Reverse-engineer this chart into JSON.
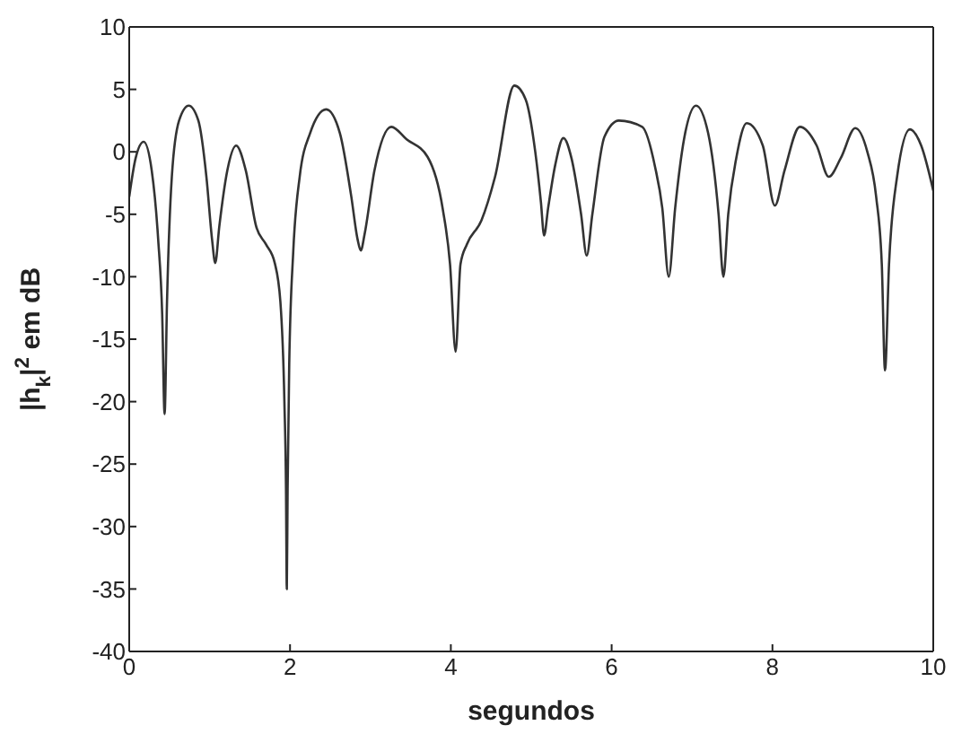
{
  "chart_data": {
    "type": "line",
    "xlabel": "segundos",
    "ylabel": "|h$_{k}$|$^{2}$ em dB",
    "xlim": [
      0,
      10
    ],
    "ylim": [
      -40,
      10
    ],
    "xticks": [
      0,
      2,
      4,
      6,
      8,
      10
    ],
    "yticks": [
      10,
      5,
      0,
      -5,
      -10,
      -15,
      -20,
      -25,
      -30,
      -35,
      -40
    ],
    "marker": "none",
    "line_style": "solid",
    "series": [
      {
        "color": "#333333",
        "x": [
          0,
          0.08,
          0.18,
          0.28,
          0.36,
          0.41,
          0.44,
          0.47,
          0.53,
          0.62,
          0.74,
          0.86,
          0.96,
          1.03,
          1.07,
          1.12,
          1.22,
          1.33,
          1.45,
          1.58,
          1.7,
          1.81,
          1.88,
          1.93,
          1.95,
          1.96,
          1.97,
          1.99,
          2.04,
          2.12,
          2.25,
          2.45,
          2.62,
          2.76,
          2.84,
          2.88,
          2.93,
          3.05,
          3.26,
          3.45,
          3.71,
          3.9,
          3.99,
          4.06,
          4.12,
          4.2,
          4.38,
          4.55,
          4.79,
          4.93,
          5.05,
          5.12,
          5.16,
          5.21,
          5.3,
          5.4,
          5.5,
          5.62,
          5.69,
          5.76,
          5.91,
          6.09,
          6.38,
          6.54,
          6.63,
          6.71,
          6.79,
          6.9,
          7.05,
          7.2,
          7.33,
          7.39,
          7.45,
          7.55,
          7.68,
          7.88,
          8.03,
          8.15,
          8.34,
          8.55,
          8.7,
          8.85,
          9.03,
          9.18,
          9.29,
          9.36,
          9.4,
          9.45,
          9.55,
          9.71,
          9.85,
          10
        ],
        "values": [
          -3.6,
          -0.5,
          0.8,
          -1.5,
          -7,
          -13,
          -21,
          -12,
          -2,
          2.5,
          3.7,
          2.5,
          -2,
          -7,
          -8.9,
          -6,
          -1.5,
          0.5,
          -1.5,
          -6,
          -7.4,
          -8.9,
          -12,
          -20,
          -27,
          -35,
          -27,
          -17,
          -8,
          -2,
          1.5,
          3.4,
          1.5,
          -3.5,
          -7,
          -7.9,
          -6.5,
          -1.5,
          2,
          1,
          -0.4,
          -4.6,
          -9,
          -16,
          -9,
          -7.4,
          -5.5,
          -2,
          5.3,
          4.2,
          0,
          -4,
          -6.7,
          -4.5,
          -1,
          1.1,
          -0.5,
          -5,
          -8.3,
          -5,
          1.2,
          2.5,
          2,
          -1.2,
          -4.5,
          -10,
          -4.5,
          1,
          3.7,
          1.5,
          -5,
          -10,
          -5,
          -0.5,
          2.3,
          0.5,
          -4.3,
          -1.5,
          2,
          0.5,
          -2,
          -0.5,
          1.9,
          0,
          -3.6,
          -9,
          -17.5,
          -9,
          -2,
          1.8,
          0.5,
          -3.1
        ]
      }
    ]
  }
}
